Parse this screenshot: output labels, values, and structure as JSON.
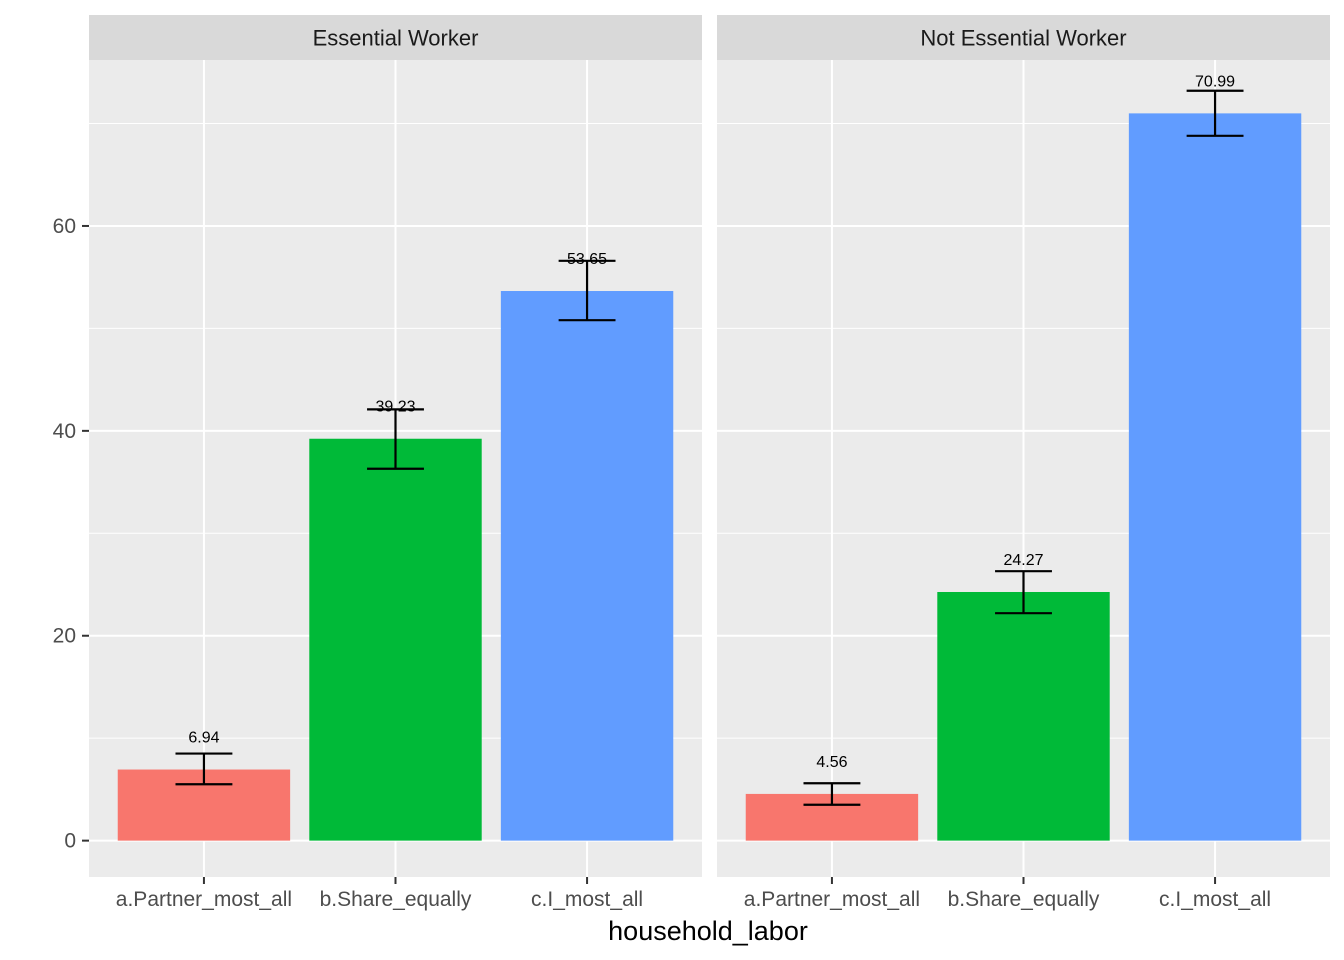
{
  "chart_data": {
    "type": "bar",
    "xlabel": "household_labor",
    "ylabel": "",
    "ylim": [
      -3.55,
      76.2
    ],
    "yticks": [
      0,
      20,
      40,
      60
    ],
    "categories": [
      "a.Partner_most_all",
      "b.Share_equally",
      "c.I_most_all"
    ],
    "grid": true,
    "legend": "none",
    "colors": [
      "#F8766D",
      "#00BA38",
      "#619CFF"
    ],
    "panels": [
      {
        "title": "Essential Worker",
        "values": [
          6.94,
          39.23,
          53.65
        ],
        "labels": [
          "6.94",
          "39.23",
          "53.65"
        ],
        "error_low": [
          5.5,
          36.3,
          50.8
        ],
        "error_high": [
          8.5,
          42.1,
          56.6
        ]
      },
      {
        "title": "Not Essential Worker",
        "values": [
          4.56,
          24.27,
          70.99
        ],
        "labels": [
          "4.56",
          "24.27",
          "70.99"
        ],
        "error_low": [
          3.5,
          22.2,
          68.8
        ],
        "error_high": [
          5.6,
          26.3,
          73.2
        ]
      }
    ]
  }
}
